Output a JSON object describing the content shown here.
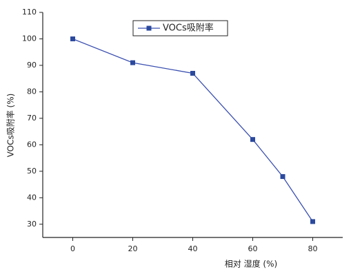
{
  "chart_data": {
    "type": "line",
    "x_label": "相对 湿度 (%)",
    "y_label": "VOCs吸附率 (%)",
    "x": [
      0,
      20,
      40,
      60,
      70,
      80
    ],
    "series": [
      {
        "name": "VOCs吸附率",
        "color": "#3a4fb0",
        "values": [
          100,
          91,
          87,
          62,
          48,
          31
        ]
      }
    ],
    "xlim": [
      -10,
      90
    ],
    "xticks": [
      0,
      20,
      40,
      60,
      80
    ],
    "ylim": [
      25,
      110
    ],
    "yticks": [
      30,
      40,
      50,
      60,
      70,
      80,
      90,
      100,
      110
    ],
    "grid": false,
    "legend": "top"
  }
}
